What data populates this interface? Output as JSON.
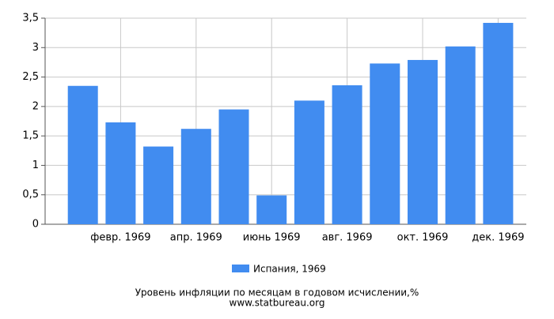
{
  "chart_data": {
    "type": "bar",
    "title": "Уровень инфляции по месяцам в годовом исчислении,%",
    "subtitle": "www.statbureau.org",
    "categories": [
      null,
      "февр. 1969",
      null,
      "апр. 1969",
      null,
      "июнь 1969",
      null,
      "авг. 1969",
      null,
      "окт. 1969",
      null,
      "дек. 1969"
    ],
    "series": [
      {
        "name": "Испания, 1969",
        "color": "#418cf0",
        "values": [
          2.35,
          1.73,
          1.32,
          1.62,
          1.95,
          0.49,
          2.1,
          2.36,
          2.73,
          2.79,
          3.02,
          3.42
        ]
      }
    ],
    "ylim": [
      0,
      3.5
    ],
    "yticks": [
      0,
      {
        "value": 0.5,
        "label": "0,5"
      },
      1,
      {
        "value": 1.5,
        "label": "1,5"
      },
      2,
      {
        "value": 2.5,
        "label": "2,5"
      },
      3,
      {
        "value": 3.5,
        "label": "3,5"
      }
    ],
    "grid": true
  }
}
